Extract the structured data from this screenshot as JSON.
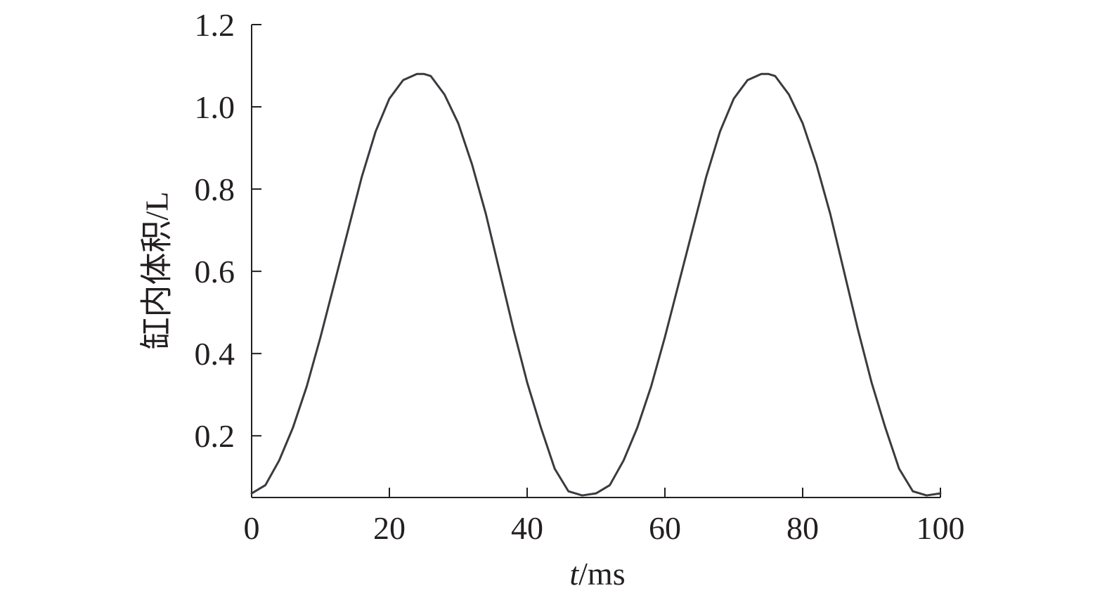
{
  "chart_data": {
    "type": "line",
    "title": "",
    "xlabel_italic": "t",
    "xlabel_rest": "/ms",
    "ylabel": "缸内体积/L",
    "xlim": [
      0,
      100
    ],
    "ylim": [
      0.05,
      1.2
    ],
    "xticks": [
      0,
      20,
      40,
      60,
      80,
      100
    ],
    "xtick_labels": [
      "0",
      "20",
      "40",
      "60",
      "80",
      "100"
    ],
    "yticks": [
      0.2,
      0.4,
      0.6,
      0.8,
      1.0,
      1.2
    ],
    "ytick_labels": [
      "0.2",
      "0.4",
      "0.6",
      "0.8",
      "1.0",
      "1.2"
    ],
    "grid": false,
    "series": [
      {
        "color": "#3a3a3f",
        "x": [
          0,
          2,
          4,
          6,
          8,
          10,
          12,
          14,
          16,
          18,
          20,
          22,
          24,
          25,
          26,
          28,
          30,
          32,
          34,
          36,
          38,
          40,
          42,
          44,
          46,
          48,
          50,
          52,
          54,
          56,
          58,
          60,
          62,
          64,
          66,
          68,
          70,
          72,
          74,
          75,
          76,
          78,
          80,
          82,
          84,
          86,
          88,
          90,
          92,
          94,
          96,
          98,
          100
        ],
        "y": [
          0.06,
          0.08,
          0.14,
          0.22,
          0.32,
          0.44,
          0.57,
          0.7,
          0.83,
          0.94,
          1.02,
          1.065,
          1.08,
          1.08,
          1.075,
          1.03,
          0.96,
          0.86,
          0.74,
          0.6,
          0.46,
          0.33,
          0.22,
          0.12,
          0.065,
          0.055,
          0.06,
          0.08,
          0.14,
          0.22,
          0.32,
          0.44,
          0.57,
          0.7,
          0.83,
          0.94,
          1.02,
          1.065,
          1.08,
          1.08,
          1.075,
          1.03,
          0.96,
          0.86,
          0.74,
          0.6,
          0.46,
          0.33,
          0.22,
          0.12,
          0.065,
          0.055,
          0.06
        ]
      }
    ]
  }
}
